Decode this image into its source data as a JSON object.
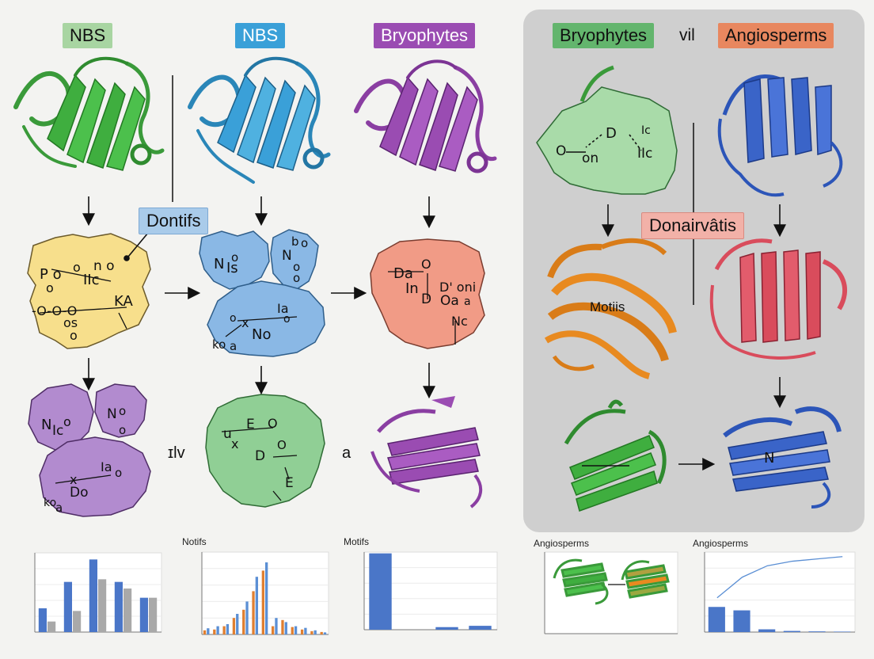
{
  "headers": {
    "col1": "NBS",
    "col2": "NBS",
    "col3": "Bryophytes",
    "panel_left": "Bryophytes",
    "panel_mid": "vil",
    "panel_right": "Angiosperms"
  },
  "callouts": {
    "dontifs": "Dontifs",
    "donairvatis": "Donairvâtis"
  },
  "inline_labels": {
    "between_row3_a": "ɪlv",
    "between_row3_b": "a",
    "motifs_on_structure": "Motiis"
  },
  "blobs": {
    "yellow": [
      "P o",
      "o",
      "IIc",
      "n o",
      "o",
      "KA",
      "-O-O-O",
      "os",
      "o"
    ],
    "blue_top_left": [
      "N",
      "Is",
      "o"
    ],
    "blue_top_right": [
      "b",
      "o",
      "N",
      "o",
      "o"
    ],
    "blue_bottom": [
      "Ia",
      "o",
      "x",
      "No",
      "o",
      "ko",
      "a"
    ],
    "salmon": [
      "Da",
      "O",
      "In",
      "D' oni",
      "D",
      "Oa",
      "a",
      "Nc"
    ],
    "purple_left": [
      "N",
      "Ic",
      "o"
    ],
    "purple_right": [
      "N",
      "o",
      "o"
    ],
    "purple_bottom": [
      "Ia",
      "o",
      "x",
      "Do",
      "ko",
      "a"
    ],
    "green_mid": [
      "u",
      "E",
      "O",
      "x",
      "D",
      "O",
      "E"
    ],
    "green_panel": [
      "O",
      "on",
      "D",
      "Ic",
      "IIc"
    ],
    "n_on_blue": "N"
  },
  "chart_titles": {
    "c2": "Notifs",
    "c3": "Motifs",
    "c4": "Angiosperms",
    "c5": "Angiosperms"
  },
  "colors": {
    "green_label": "#a8d5a2",
    "blue_label": "#3aa0d8",
    "purple_label": "#9a4cb2",
    "panel_green": "#63b56d",
    "panel_salmon": "#e8875f",
    "callout_blue": "#a9cbea",
    "callout_pink": "#f2b1a8",
    "panel_bg": "#cfcfcf"
  },
  "chart_data": [
    {
      "type": "bar",
      "title": "",
      "series": [
        {
          "values": [
            90,
            190,
            275,
            190,
            130
          ]
        },
        {
          "values": [
            40,
            80,
            200,
            165,
            130
          ]
        }
      ],
      "ylim": [
        0,
        300
      ]
    },
    {
      "type": "bar",
      "title": "Notifs",
      "series": [
        {
          "values": [
            10,
            12,
            20,
            40,
            60,
            105,
            155,
            20,
            35,
            18,
            12,
            8,
            6
          ]
        },
        {
          "values": [
            15,
            20,
            25,
            50,
            80,
            140,
            175,
            40,
            30,
            20,
            16,
            10,
            5
          ]
        }
      ],
      "ylim": [
        0,
        200
      ]
    },
    {
      "type": "bar",
      "title": "Motifs",
      "series": [
        {
          "values": [
            2.95,
            0,
            0.1,
            0.15
          ]
        }
      ],
      "ylim": [
        0,
        3
      ]
    },
    {
      "type": "bar",
      "title": "Angiosperms",
      "series": [
        {
          "values": [
            1.1,
            0.95,
            0.12,
            0.05,
            0.03,
            0.02
          ]
        },
        {
          "values": [
            1.5,
            2.4,
            2.9,
            3.1,
            3.2,
            3.3
          ]
        }
      ],
      "ylim": [
        0,
        3.5
      ]
    }
  ]
}
